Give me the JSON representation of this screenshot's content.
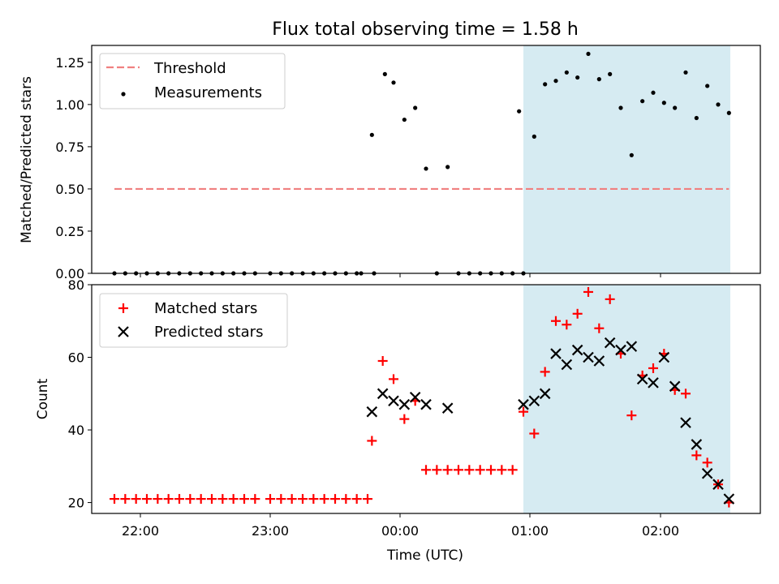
{
  "chart_data": [
    {
      "type": "scatter",
      "title": "Flux total observing time = 1.58 h",
      "ylabel": "Matched/Predicted stars",
      "xlabel": "",
      "ylim": [
        0,
        1.35
      ],
      "yticks": [
        "0.00",
        "0.25",
        "0.50",
        "0.75",
        "1.00",
        "1.25"
      ],
      "ytick_values": [
        0,
        0.25,
        0.5,
        0.75,
        1.0,
        1.25
      ],
      "grid": false,
      "legend_position": "top-left",
      "shaded_region": {
        "from": "00:57",
        "to": "02:32",
        "color": "#add8e6"
      },
      "threshold": {
        "name": "Threshold",
        "value": 0.5,
        "x_from": "21:48",
        "x_to": "02:32",
        "color": "#f08080"
      },
      "series": [
        {
          "name": "Measurements",
          "color": "#000000",
          "x": [
            "21:48",
            "21:53",
            "21:58",
            "22:03",
            "22:08",
            "22:13",
            "22:18",
            "22:23",
            "22:28",
            "22:33",
            "22:38",
            "22:43",
            "22:48",
            "22:53",
            "23:00",
            "23:05",
            "23:10",
            "23:15",
            "23:20",
            "23:25",
            "23:30",
            "23:35",
            "23:40",
            "23:42",
            "23:48",
            "23:47",
            "23:53",
            "23:57",
            "00:02",
            "00:07",
            "00:12",
            "00:17",
            "00:22",
            "00:27",
            "00:32",
            "00:37",
            "00:42",
            "00:47",
            "00:52",
            "00:57",
            "00:55",
            "01:02",
            "01:07",
            "01:12",
            "01:17",
            "01:22",
            "01:27",
            "01:32",
            "01:37",
            "01:42",
            "01:47",
            "01:52",
            "01:57",
            "02:02",
            "02:07",
            "02:12",
            "02:17",
            "02:22",
            "02:27",
            "02:32"
          ],
          "y": [
            0,
            0,
            0,
            0,
            0,
            0,
            0,
            0,
            0,
            0,
            0,
            0,
            0,
            0,
            0,
            0,
            0,
            0,
            0,
            0,
            0,
            0,
            0,
            0,
            0,
            0.82,
            1.18,
            1.13,
            0.91,
            0.98,
            0.62,
            0,
            0.63,
            0,
            0,
            0,
            0,
            0,
            0,
            0,
            0.96,
            0.81,
            1.12,
            1.14,
            1.19,
            1.16,
            1.3,
            1.15,
            1.18,
            0.98,
            0.7,
            1.02,
            1.07,
            1.01,
            0.98,
            1.19,
            0.92,
            1.11,
            1.0,
            0.95
          ]
        }
      ]
    },
    {
      "type": "scatter",
      "title": "",
      "ylabel": "Count",
      "xlabel": "Time (UTC)",
      "ylim": [
        17,
        80
      ],
      "yticks": [
        "20",
        "40",
        "60",
        "80"
      ],
      "ytick_values": [
        20,
        40,
        60,
        80
      ],
      "xticks": [
        "22:00",
        "23:00",
        "00:00",
        "01:00",
        "02:00"
      ],
      "grid": false,
      "legend_position": "top-left",
      "shaded_region": {
        "from": "00:57",
        "to": "02:32",
        "color": "#add8e6"
      },
      "series": [
        {
          "name": "Matched stars",
          "marker": "+",
          "color": "#ff0000",
          "x": [
            "21:48",
            "21:53",
            "21:58",
            "22:03",
            "22:08",
            "22:13",
            "22:18",
            "22:23",
            "22:28",
            "22:33",
            "22:38",
            "22:43",
            "22:48",
            "22:53",
            "23:00",
            "23:05",
            "23:10",
            "23:15",
            "23:20",
            "23:25",
            "23:30",
            "23:35",
            "23:40",
            "23:47",
            "23:45",
            "23:52",
            "23:57",
            "00:02",
            "00:07",
            "00:12",
            "00:17",
            "00:22",
            "00:27",
            "00:32",
            "00:37",
            "00:42",
            "00:47",
            "00:52",
            "00:57",
            "01:02",
            "01:07",
            "01:12",
            "01:17",
            "01:22",
            "01:27",
            "01:32",
            "01:37",
            "01:42",
            "01:47",
            "01:52",
            "01:57",
            "02:02",
            "02:07",
            "02:12",
            "02:17",
            "02:22",
            "02:27",
            "02:32"
          ],
          "y": [
            21,
            21,
            21,
            21,
            21,
            21,
            21,
            21,
            21,
            21,
            21,
            21,
            21,
            21,
            21,
            21,
            21,
            21,
            21,
            21,
            21,
            21,
            21,
            37,
            21,
            59,
            54,
            43,
            48,
            29,
            29,
            29,
            29,
            29,
            29,
            29,
            29,
            29,
            45,
            39,
            56,
            70,
            69,
            72,
            78,
            68,
            76,
            61,
            44,
            55,
            57,
            61,
            51,
            50,
            33,
            31,
            25,
            20
          ]
        },
        {
          "name": "Predicted stars",
          "marker": "x",
          "color": "#000000",
          "x": [
            "23:47",
            "23:52",
            "23:57",
            "00:02",
            "00:07",
            "00:12",
            "00:22",
            "00:57",
            "01:02",
            "01:07",
            "01:12",
            "01:17",
            "01:22",
            "01:27",
            "01:32",
            "01:37",
            "01:42",
            "01:47",
            "01:52",
            "01:57",
            "02:02",
            "02:07",
            "02:12",
            "02:17",
            "02:22",
            "02:27",
            "02:32"
          ],
          "y": [
            45,
            50,
            48,
            47,
            49,
            47,
            46,
            47,
            48,
            50,
            61,
            58,
            62,
            60,
            59,
            64,
            62,
            63,
            54,
            53,
            60,
            52,
            42,
            36,
            28,
            25,
            21
          ]
        }
      ]
    }
  ]
}
